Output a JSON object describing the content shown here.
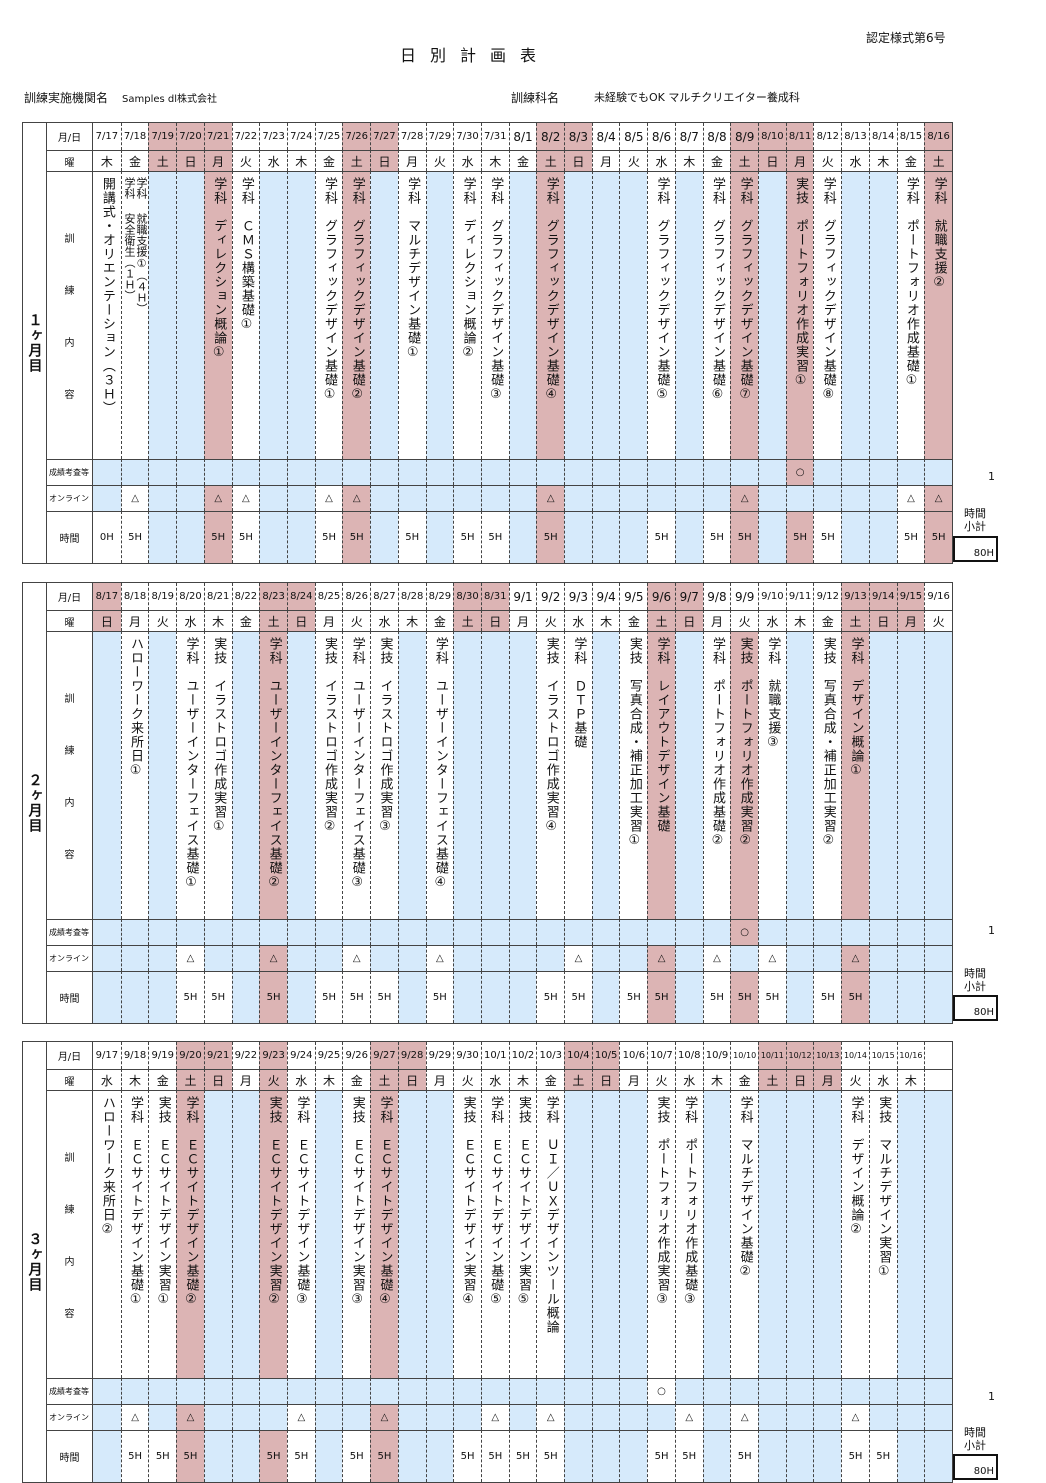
{
  "header": {
    "form_number": "認定様式第6号",
    "title": "日別計画表",
    "org_label": "訓練実施機関名",
    "org_value": "Samples dl株式会社",
    "course_label": "訓練科名",
    "course_value": "未経験でもOK マルチクリエイター養成科"
  },
  "row_labels": {
    "date": "月/日",
    "dow": "曜",
    "content_chars": [
      "訓",
      "練",
      "内",
      "容"
    ],
    "exam": "成績考査等",
    "online": "オンライン",
    "hours": "時間",
    "subtotal": "時間小計"
  },
  "colors": {
    "holiday": "#dcb4b4",
    "no_class": "#d6eafb",
    "class": "#ffffff"
  },
  "blocks": [
    {
      "label": "１ヶ月目",
      "exam_count": "1",
      "subtotal": "80H",
      "days": [
        {
          "d": "7/17",
          "w": "木",
          "c": [
            {
              "t": "",
              "s": "開講式・オリエンテーション（３Ｈ）"
            }
          ],
          "h": "0H"
        },
        {
          "d": "7/18",
          "w": "金",
          "c": [
            {
              "t": "学科",
              "s": "安全衛生（１Ｈ）"
            },
            {
              "t": "学科",
              "s": "就職支援①（４Ｈ）"
            }
          ],
          "o": "△",
          "h": "5H"
        },
        {
          "d": "7/19",
          "w": "土",
          "hp": true
        },
        {
          "d": "7/20",
          "w": "日",
          "hp": true
        },
        {
          "d": "7/21",
          "w": "月",
          "hp": true,
          "bp": true,
          "c": [
            {
              "t": "学科",
              "s": "ディレクション概論①"
            }
          ],
          "o": "△",
          "h": "5H"
        },
        {
          "d": "7/22",
          "w": "火",
          "c": [
            {
              "t": "学科",
              "s": "ＣＭＳ構築基礎①"
            }
          ],
          "o": "△",
          "h": "5H"
        },
        {
          "d": "7/23",
          "w": "水"
        },
        {
          "d": "7/24",
          "w": "木"
        },
        {
          "d": "7/25",
          "w": "金",
          "c": [
            {
              "t": "学科",
              "s": "グラフィックデザイン基礎①"
            }
          ],
          "o": "△",
          "h": "5H"
        },
        {
          "d": "7/26",
          "w": "土",
          "hp": true,
          "bp": true,
          "c": [
            {
              "t": "学科",
              "s": "グラフィックデザイン基礎②"
            }
          ],
          "o": "△",
          "h": "5H"
        },
        {
          "d": "7/27",
          "w": "日",
          "hp": true
        },
        {
          "d": "7/28",
          "w": "月",
          "c": [
            {
              "t": "学科",
              "s": "マルチデザイン基礎①"
            }
          ],
          "h": "5H"
        },
        {
          "d": "7/29",
          "w": "火"
        },
        {
          "d": "7/30",
          "w": "水",
          "c": [
            {
              "t": "学科",
              "s": "ディレクション概論②"
            }
          ],
          "h": "5H"
        },
        {
          "d": "7/31",
          "w": "木",
          "c": [
            {
              "t": "学科",
              "s": "グラフィックデザイン基礎③"
            }
          ],
          "h": "5H"
        },
        {
          "d": "8/1",
          "w": "金"
        },
        {
          "d": "8/2",
          "w": "土",
          "hp": true,
          "bp": true,
          "c": [
            {
              "t": "学科",
              "s": "グラフィックデザイン基礎④"
            }
          ],
          "o": "△",
          "h": "5H"
        },
        {
          "d": "8/3",
          "w": "日",
          "hp": true
        },
        {
          "d": "8/4",
          "w": "月"
        },
        {
          "d": "8/5",
          "w": "火"
        },
        {
          "d": "8/6",
          "w": "水",
          "c": [
            {
              "t": "学科",
              "s": "グラフィックデザイン基礎⑤"
            }
          ],
          "h": "5H"
        },
        {
          "d": "8/7",
          "w": "木"
        },
        {
          "d": "8/8",
          "w": "金",
          "c": [
            {
              "t": "学科",
              "s": "グラフィックデザイン基礎⑥"
            }
          ],
          "h": "5H"
        },
        {
          "d": "8/9",
          "w": "土",
          "hp": true,
          "bp": true,
          "c": [
            {
              "t": "学科",
              "s": "グラフィックデザイン基礎⑦"
            }
          ],
          "o": "△",
          "h": "5H"
        },
        {
          "d": "8/10",
          "w": "日",
          "hp": true
        },
        {
          "d": "8/11",
          "w": "月",
          "hp": true,
          "bp": true,
          "c": [
            {
              "t": "実技",
              "s": "ポートフォリオ作成実習①"
            }
          ],
          "e": "○",
          "h": "5H"
        },
        {
          "d": "8/12",
          "w": "火",
          "c": [
            {
              "t": "学科",
              "s": "グラフィックデザイン基礎⑧"
            }
          ],
          "h": "5H"
        },
        {
          "d": "8/13",
          "w": "水"
        },
        {
          "d": "8/14",
          "w": "木"
        },
        {
          "d": "8/15",
          "w": "金",
          "c": [
            {
              "t": "学科",
              "s": "ポートフォリオ作成基礎①"
            }
          ],
          "o": "△",
          "h": "5H"
        },
        {
          "d": "8/16",
          "w": "土",
          "hp": true,
          "bp": true,
          "c": [
            {
              "t": "学科",
              "s": "就職支援②"
            }
          ],
          "o": "△",
          "h": "5H"
        }
      ]
    },
    {
      "label": "２ヶ月目",
      "exam_count": "1",
      "subtotal": "80H",
      "days": [
        {
          "d": "8/17",
          "w": "日",
          "hp": true
        },
        {
          "d": "8/18",
          "w": "月",
          "c": [
            {
              "t": "",
              "s": "ハローワーク来所日①"
            }
          ]
        },
        {
          "d": "8/19",
          "w": "火"
        },
        {
          "d": "8/20",
          "w": "水",
          "c": [
            {
              "t": "学科",
              "s": "ユーザーインターフェイス基礎①"
            }
          ],
          "o": "△",
          "h": "5H"
        },
        {
          "d": "8/21",
          "w": "木",
          "c": [
            {
              "t": "実技",
              "s": "イラストロゴ作成実習①"
            }
          ],
          "h": "5H"
        },
        {
          "d": "8/22",
          "w": "金"
        },
        {
          "d": "8/23",
          "w": "土",
          "hp": true,
          "bp": true,
          "c": [
            {
              "t": "学科",
              "s": "ユーザーインターフェイス基礎②"
            }
          ],
          "o": "△",
          "h": "5H"
        },
        {
          "d": "8/24",
          "w": "日",
          "hp": true
        },
        {
          "d": "8/25",
          "w": "月",
          "c": [
            {
              "t": "実技",
              "s": "イラストロゴ作成実習②"
            }
          ],
          "h": "5H"
        },
        {
          "d": "8/26",
          "w": "火",
          "c": [
            {
              "t": "学科",
              "s": "ユーザーインターフェイス基礎③"
            }
          ],
          "o": "△",
          "h": "5H"
        },
        {
          "d": "8/27",
          "w": "水",
          "c": [
            {
              "t": "実技",
              "s": "イラストロゴ作成実習③"
            }
          ],
          "h": "5H"
        },
        {
          "d": "8/28",
          "w": "木"
        },
        {
          "d": "8/29",
          "w": "金",
          "c": [
            {
              "t": "学科",
              "s": "ユーザーインターフェイス基礎④"
            }
          ],
          "o": "△",
          "h": "5H"
        },
        {
          "d": "8/30",
          "w": "土",
          "hp": true
        },
        {
          "d": "8/31",
          "w": "日",
          "hp": true
        },
        {
          "d": "9/1",
          "w": "月"
        },
        {
          "d": "9/2",
          "w": "火",
          "c": [
            {
              "t": "実技",
              "s": "イラストロゴ作成実習④"
            }
          ],
          "h": "5H"
        },
        {
          "d": "9/3",
          "w": "水",
          "c": [
            {
              "t": "学科",
              "s": "ＤＴＰ基礎"
            }
          ],
          "o": "△",
          "h": "5H"
        },
        {
          "d": "9/4",
          "w": "木"
        },
        {
          "d": "9/5",
          "w": "金",
          "c": [
            {
              "t": "実技",
              "s": "写真合成・補正加工実習①"
            }
          ],
          "h": "5H"
        },
        {
          "d": "9/6",
          "w": "土",
          "hp": true,
          "bp": true,
          "c": [
            {
              "t": "学科",
              "s": "レイアウトデザイン基礎"
            }
          ],
          "o": "△",
          "h": "5H"
        },
        {
          "d": "9/7",
          "w": "日",
          "hp": true
        },
        {
          "d": "9/8",
          "w": "月",
          "c": [
            {
              "t": "学科",
              "s": "ポートフォリオ作成基礎②"
            }
          ],
          "o": "△",
          "h": "5H"
        },
        {
          "d": "9/9",
          "w": "火",
          "bp": true,
          "c": [
            {
              "t": "実技",
              "s": "ポートフォリオ作成実習②"
            }
          ],
          "e": "○",
          "h": "5H"
        },
        {
          "d": "9/10",
          "w": "水",
          "c": [
            {
              "t": "学科",
              "s": "就職支援③"
            }
          ],
          "o": "△",
          "h": "5H"
        },
        {
          "d": "9/11",
          "w": "木"
        },
        {
          "d": "9/12",
          "w": "金",
          "c": [
            {
              "t": "実技",
              "s": "写真合成・補正加工実習②"
            }
          ],
          "h": "5H"
        },
        {
          "d": "9/13",
          "w": "土",
          "hp": true,
          "bp": true,
          "c": [
            {
              "t": "学科",
              "s": "デザイン概論①"
            }
          ],
          "o": "△",
          "h": "5H"
        },
        {
          "d": "9/14",
          "w": "日",
          "hp": true
        },
        {
          "d": "9/15",
          "w": "月",
          "hp": true
        },
        {
          "d": "9/16",
          "w": "火"
        }
      ]
    },
    {
      "label": "３ヶ月目",
      "exam_count": "1",
      "subtotal": "80H",
      "days": [
        {
          "d": "9/17",
          "w": "水",
          "c": [
            {
              "t": "",
              "s": "ハローワーク来所日②"
            }
          ]
        },
        {
          "d": "9/18",
          "w": "木",
          "c": [
            {
              "t": "学科",
              "s": "ＥＣサイトデザイン基礎①"
            }
          ],
          "o": "△",
          "h": "5H"
        },
        {
          "d": "9/19",
          "w": "金",
          "c": [
            {
              "t": "実技",
              "s": "ＥＣサイトデザイン実習①"
            }
          ],
          "h": "5H"
        },
        {
          "d": "9/20",
          "w": "土",
          "hp": true,
          "bp": true,
          "c": [
            {
              "t": "学科",
              "s": "ＥＣサイトデザイン基礎②"
            }
          ],
          "o": "△",
          "h": "5H"
        },
        {
          "d": "9/21",
          "w": "日",
          "hp": true
        },
        {
          "d": "9/22",
          "w": "月"
        },
        {
          "d": "9/23",
          "w": "火",
          "hp": true,
          "bp": true,
          "c": [
            {
              "t": "実技",
              "s": "ＥＣサイトデザイン実習②"
            }
          ],
          "h": "5H"
        },
        {
          "d": "9/24",
          "w": "水",
          "c": [
            {
              "t": "学科",
              "s": "ＥＣサイトデザイン基礎③"
            }
          ],
          "o": "△",
          "h": "5H"
        },
        {
          "d": "9/25",
          "w": "木"
        },
        {
          "d": "9/26",
          "w": "金",
          "c": [
            {
              "t": "実技",
              "s": "ＥＣサイトデザイン実習③"
            }
          ],
          "h": "5H"
        },
        {
          "d": "9/27",
          "w": "土",
          "hp": true,
          "bp": true,
          "c": [
            {
              "t": "学科",
              "s": "ＥＣサイトデザイン基礎④"
            }
          ],
          "o": "△",
          "h": "5H"
        },
        {
          "d": "9/28",
          "w": "日",
          "hp": true
        },
        {
          "d": "9/29",
          "w": "月"
        },
        {
          "d": "9/30",
          "w": "火",
          "c": [
            {
              "t": "実技",
              "s": "ＥＣサイトデザイン実習④"
            }
          ],
          "h": "5H"
        },
        {
          "d": "10/1",
          "w": "水",
          "c": [
            {
              "t": "学科",
              "s": "ＥＣサイトデザイン基礎⑤"
            }
          ],
          "o": "△",
          "h": "5H"
        },
        {
          "d": "10/2",
          "w": "木",
          "c": [
            {
              "t": "実技",
              "s": "ＥＣサイトデザイン実習⑤"
            }
          ],
          "h": "5H"
        },
        {
          "d": "10/3",
          "w": "金",
          "c": [
            {
              "t": "学科",
              "s": "ＵＩ／ＵＸデザインツール概論"
            }
          ],
          "o": "△",
          "h": "5H"
        },
        {
          "d": "10/4",
          "w": "土",
          "hp": true
        },
        {
          "d": "10/5",
          "w": "日",
          "hp": true
        },
        {
          "d": "10/6",
          "w": "月"
        },
        {
          "d": "10/7",
          "w": "火",
          "c": [
            {
              "t": "実技",
              "s": "ポートフォリオ作成実習③"
            }
          ],
          "e": "○",
          "h": "5H"
        },
        {
          "d": "10/8",
          "w": "水",
          "c": [
            {
              "t": "学科",
              "s": "ポートフォリオ作成基礎③"
            }
          ],
          "o": "△",
          "h": "5H"
        },
        {
          "d": "10/9",
          "w": "木"
        },
        {
          "d": "10/10",
          "w": "金",
          "c": [
            {
              "t": "学科",
              "s": "マルチデザイン基礎②"
            }
          ],
          "o": "△",
          "h": "5H"
        },
        {
          "d": "10/11",
          "w": "土",
          "hp": true
        },
        {
          "d": "10/12",
          "w": "日",
          "hp": true
        },
        {
          "d": "10/13",
          "w": "月",
          "hp": true
        },
        {
          "d": "10/14",
          "w": "火",
          "c": [
            {
              "t": "学科",
              "s": "デザイン概論②"
            }
          ],
          "o": "△",
          "h": "5H"
        },
        {
          "d": "10/15",
          "w": "水",
          "c": [
            {
              "t": "実技",
              "s": "マルチデザイン実習①"
            }
          ],
          "h": "5H"
        },
        {
          "d": "10/16",
          "w": "木"
        },
        {
          "d": "",
          "w": ""
        }
      ]
    }
  ]
}
